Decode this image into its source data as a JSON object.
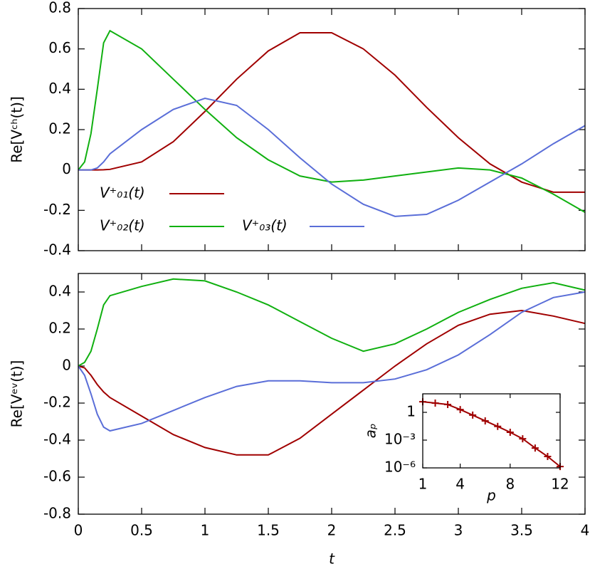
{
  "chart_data": [
    {
      "type": "line",
      "ylabel": "Re[Vᶜʰ(t)]",
      "x": [
        0,
        0.05,
        0.1,
        0.15,
        0.2,
        0.25,
        0.5,
        0.75,
        1,
        1.25,
        1.5,
        1.75,
        2,
        2.25,
        2.5,
        2.75,
        3,
        3.25,
        3.5,
        3.75,
        4
      ],
      "series": [
        {
          "name": "V⁺₀₁(t)",
          "color": "#a00000",
          "values": [
            0,
            0,
            0,
            0,
            0.001,
            0.003,
            0.04,
            0.14,
            0.29,
            0.45,
            0.59,
            0.68,
            0.68,
            0.6,
            0.47,
            0.31,
            0.16,
            0.03,
            -0.06,
            -0.11,
            -0.11
          ]
        },
        {
          "name": "V⁺₀₂(t)",
          "color": "#10b010",
          "values": [
            0,
            0.04,
            0.18,
            0.4,
            0.63,
            0.69,
            0.6,
            0.45,
            0.3,
            0.16,
            0.05,
            -0.03,
            -0.06,
            -0.05,
            -0.03,
            -0.01,
            0.01,
            0,
            -0.04,
            -0.12,
            -0.21
          ]
        },
        {
          "name": "V⁺₀₃(t)",
          "color": "#5a6ed8",
          "values": [
            0,
            0,
            0,
            0.01,
            0.04,
            0.08,
            0.2,
            0.3,
            0.355,
            0.32,
            0.2,
            0.06,
            -0.07,
            -0.17,
            -0.23,
            -0.22,
            -0.15,
            -0.06,
            0.03,
            0.13,
            0.22
          ]
        }
      ],
      "xlim": [
        0,
        4
      ],
      "xticks": [
        0,
        0.5,
        1,
        1.5,
        2,
        2.5,
        3,
        3.5,
        4
      ],
      "xtick_labels": false,
      "ylim": [
        -0.4,
        0.8
      ],
      "yticks": [
        -0.4,
        -0.2,
        0,
        0.2,
        0.4,
        0.6,
        0.8
      ]
    },
    {
      "type": "line",
      "ylabel": "Re[Vᵉᵛ(t)]",
      "xlabel": "t",
      "x": [
        0,
        0.05,
        0.1,
        0.15,
        0.2,
        0.25,
        0.5,
        0.75,
        1,
        1.25,
        1.5,
        1.75,
        2,
        2.25,
        2.5,
        2.75,
        3,
        3.25,
        3.5,
        3.75,
        4
      ],
      "series": [
        {
          "color": "#a00000",
          "values": [
            0,
            -0.01,
            -0.05,
            -0.1,
            -0.14,
            -0.17,
            -0.27,
            -0.37,
            -0.44,
            -0.48,
            -0.48,
            -0.39,
            -0.26,
            -0.13,
            0,
            0.12,
            0.22,
            0.28,
            0.3,
            0.27,
            0.23
          ]
        },
        {
          "color": "#10b010",
          "values": [
            0,
            0.02,
            0.08,
            0.2,
            0.33,
            0.38,
            0.43,
            0.47,
            0.46,
            0.4,
            0.33,
            0.24,
            0.15,
            0.08,
            0.12,
            0.2,
            0.29,
            0.36,
            0.42,
            0.45,
            0.41
          ]
        },
        {
          "color": "#5a6ed8",
          "values": [
            0,
            -0.05,
            -0.15,
            -0.26,
            -0.33,
            -0.35,
            -0.31,
            -0.24,
            -0.17,
            -0.11,
            -0.08,
            -0.08,
            -0.09,
            -0.09,
            -0.07,
            -0.02,
            0.06,
            0.17,
            0.29,
            0.37,
            0.4
          ]
        }
      ],
      "xlim": [
        0,
        4
      ],
      "xticks": [
        0,
        0.5,
        1,
        1.5,
        2,
        2.5,
        3,
        3.5,
        4
      ],
      "ylim": [
        -0.8,
        0.5
      ],
      "yticks": [
        -0.8,
        -0.6,
        -0.4,
        -0.2,
        0,
        0.2,
        0.4
      ]
    },
    {
      "type": "line",
      "xlabel": "p",
      "ylabel": "aₚ",
      "log_y": true,
      "marker": "+",
      "x": [
        1,
        2,
        3,
        4,
        5,
        6,
        7,
        8,
        9,
        10,
        11,
        12
      ],
      "series": [
        {
          "color": "#a00000",
          "values": [
            14,
            10,
            7,
            2,
            0.5,
            0.12,
            0.03,
            0.007,
            0.0014,
            0.00014,
            1.7e-05,
            1.4e-06
          ]
        }
      ],
      "xlim": [
        1,
        12
      ],
      "xticks": [
        1,
        4,
        8,
        12
      ],
      "ylim": [
        1e-06,
        100
      ],
      "yticks": [
        {
          "value": 1e-06,
          "label": "10⁻⁶"
        },
        {
          "value": 0.001,
          "label": "10⁻³"
        },
        1
      ]
    }
  ]
}
